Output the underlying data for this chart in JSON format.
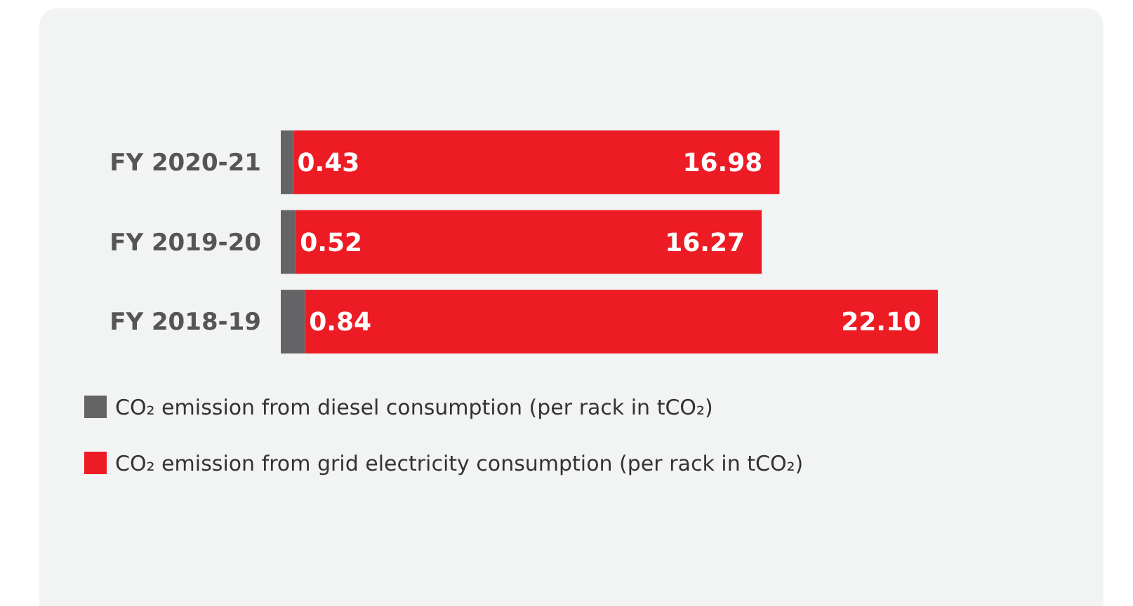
{
  "chart_data": {
    "type": "bar",
    "orientation": "horizontal",
    "stacked": true,
    "categories": [
      "FY 2020-21",
      "FY 2019-20",
      "FY 2018-19"
    ],
    "series": [
      {
        "name": "CO₂ emission from diesel consumption (per rack in tCO₂)",
        "color": "#646466",
        "values": [
          0.43,
          0.52,
          0.84
        ],
        "value_labels": [
          "0.43",
          "0.52",
          "0.84"
        ]
      },
      {
        "name": "CO₂ emission from grid electricity consumption (per rack in tCO₂)",
        "color": "#ed1c24",
        "values": [
          16.98,
          16.27,
          22.1
        ],
        "value_labels": [
          "16.98",
          "16.27",
          "22.10"
        ]
      }
    ],
    "tick_labels": "y",
    "legend": "bottom left"
  }
}
